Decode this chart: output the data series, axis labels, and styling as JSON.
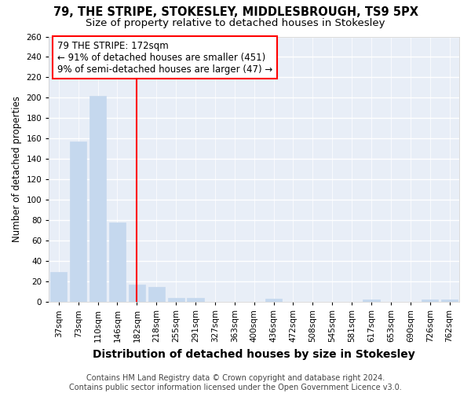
{
  "title1": "79, THE STRIPE, STOKESLEY, MIDDLESBROUGH, TS9 5PX",
  "title2": "Size of property relative to detached houses in Stokesley",
  "xlabel": "Distribution of detached houses by size in Stokesley",
  "ylabel": "Number of detached properties",
  "categories": [
    "37sqm",
    "73sqm",
    "110sqm",
    "146sqm",
    "182sqm",
    "218sqm",
    "255sqm",
    "291sqm",
    "327sqm",
    "363sqm",
    "400sqm",
    "436sqm",
    "472sqm",
    "508sqm",
    "545sqm",
    "581sqm",
    "617sqm",
    "653sqm",
    "690sqm",
    "726sqm",
    "762sqm"
  ],
  "values": [
    29,
    157,
    202,
    78,
    17,
    15,
    4,
    4,
    0,
    0,
    0,
    3,
    0,
    0,
    0,
    0,
    2,
    0,
    0,
    2,
    2
  ],
  "bar_color": "#c5d8ee",
  "bar_edge_color": "#c5d8ee",
  "vline_x": 4,
  "vline_color": "red",
  "annotation_text": "79 THE STRIPE: 172sqm\n← 91% of detached houses are smaller (451)\n9% of semi-detached houses are larger (47) →",
  "annotation_box_color": "white",
  "annotation_box_edge_color": "red",
  "ylim": [
    0,
    260
  ],
  "yticks": [
    0,
    20,
    40,
    60,
    80,
    100,
    120,
    140,
    160,
    180,
    200,
    220,
    240,
    260
  ],
  "bg_color": "#ffffff",
  "plot_bg_color": "#e8eef7",
  "grid_color": "white",
  "footer_text": "Contains HM Land Registry data © Crown copyright and database right 2024.\nContains public sector information licensed under the Open Government Licence v3.0.",
  "title1_fontsize": 10.5,
  "title2_fontsize": 9.5,
  "xlabel_fontsize": 10,
  "ylabel_fontsize": 8.5,
  "tick_fontsize": 7.5,
  "footer_fontsize": 7,
  "annot_fontsize": 8.5
}
